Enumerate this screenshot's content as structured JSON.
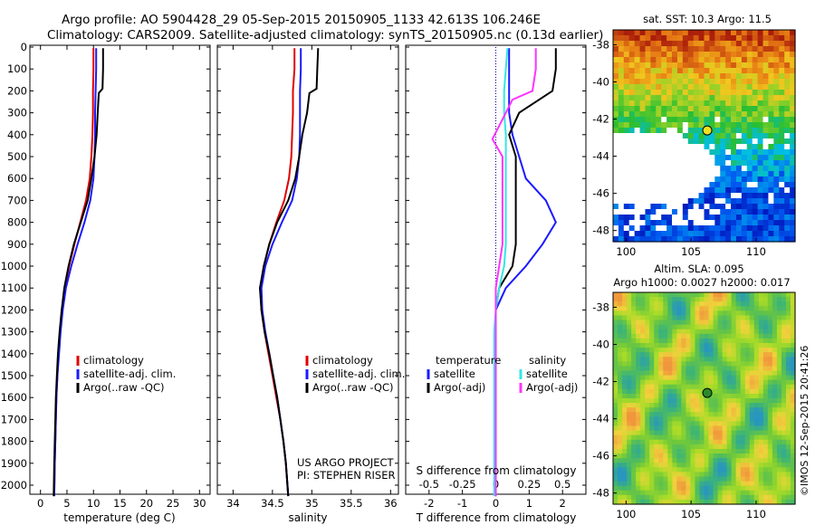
{
  "header": {
    "line1": "Argo profile: AO 5904428_29 05-Sep-2015 20150905_1133 42.613S 106.246E",
    "line2": "Climatology: CARS2009. Satellite-adjusted climatology: synTS_20150905.nc (0.13d earlier)"
  },
  "colors": {
    "climatology": "#e00000",
    "satellite": "#1a1aff",
    "argo": "#000000",
    "argo_adj_s": "#ff33ff",
    "satellite_s": "#33e6e6",
    "dotted_zero": "#0000aa"
  },
  "chart_data": [
    {
      "id": "temperature",
      "type": "line",
      "xlabel": "temperature (deg C)",
      "x_ticks": [
        "0",
        "5",
        "10",
        "15",
        "20",
        "25",
        "30"
      ],
      "xlim": [
        -2,
        32
      ],
      "y_ticks": [
        "0",
        "100",
        "200",
        "300",
        "400",
        "500",
        "600",
        "700",
        "800",
        "900",
        "1000",
        "1100",
        "1200",
        "1300",
        "1400",
        "1500",
        "1600",
        "1700",
        "1800",
        "1900",
        "2000"
      ],
      "ylim": [
        0,
        2060
      ],
      "y_reversed": true,
      "legend": [
        "climatology",
        "satellite-adj. clim.",
        "Argo(..raw -QC)"
      ],
      "series": [
        {
          "name": "climatology",
          "color": "#e00000",
          "points": [
            [
              10.0,
              5
            ],
            [
              10.0,
              100
            ],
            [
              9.9,
              200
            ],
            [
              9.9,
              300
            ],
            [
              9.8,
              400
            ],
            [
              9.6,
              500
            ],
            [
              9.3,
              600
            ],
            [
              8.6,
              700
            ],
            [
              7.5,
              800
            ],
            [
              6.4,
              900
            ],
            [
              5.4,
              1000
            ],
            [
              4.6,
              1100
            ],
            [
              4.1,
              1200
            ],
            [
              3.7,
              1300
            ],
            [
              3.4,
              1400
            ],
            [
              3.2,
              1500
            ],
            [
              3.0,
              1600
            ],
            [
              2.9,
              1700
            ],
            [
              2.8,
              1800
            ],
            [
              2.7,
              1900
            ],
            [
              2.6,
              2050
            ]
          ]
        },
        {
          "name": "satellite-adj. clim.",
          "color": "#1a1aff",
          "points": [
            [
              10.5,
              5
            ],
            [
              10.5,
              100
            ],
            [
              10.4,
              200
            ],
            [
              10.3,
              300
            ],
            [
              10.3,
              400
            ],
            [
              10.2,
              500
            ],
            [
              10.0,
              600
            ],
            [
              9.4,
              700
            ],
            [
              8.3,
              800
            ],
            [
              7.0,
              900
            ],
            [
              5.8,
              1000
            ],
            [
              4.8,
              1100
            ],
            [
              4.2,
              1200
            ],
            [
              3.8,
              1300
            ],
            [
              3.5,
              1400
            ],
            [
              3.2,
              1500
            ],
            [
              3.0,
              1600
            ],
            [
              2.9,
              1700
            ],
            [
              2.8,
              1800
            ],
            [
              2.7,
              1900
            ],
            [
              2.6,
              2050
            ]
          ]
        },
        {
          "name": "Argo(..raw -QC)",
          "color": "#000000",
          "points": [
            [
              11.8,
              5
            ],
            [
              11.8,
              100
            ],
            [
              11.7,
              190
            ],
            [
              11.0,
              210
            ],
            [
              10.8,
              300
            ],
            [
              10.6,
              400
            ],
            [
              10.2,
              500
            ],
            [
              9.6,
              600
            ],
            [
              8.9,
              700
            ],
            [
              7.6,
              800
            ],
            [
              6.3,
              900
            ],
            [
              5.3,
              1000
            ],
            [
              4.5,
              1100
            ],
            [
              4.0,
              1200
            ],
            [
              3.6,
              1300
            ],
            [
              3.3,
              1400
            ],
            [
              3.1,
              1500
            ],
            [
              2.9,
              1600
            ],
            [
              2.8,
              1700
            ],
            [
              2.7,
              1800
            ],
            [
              2.6,
              1900
            ],
            [
              2.5,
              2050
            ]
          ]
        }
      ]
    },
    {
      "id": "salinity",
      "type": "line",
      "xlabel": "salinity",
      "x_ticks": [
        "34",
        "34.5",
        "35",
        "35.5",
        "36"
      ],
      "xlim": [
        33.8,
        36.1
      ],
      "ylim": [
        0,
        2060
      ],
      "y_reversed": true,
      "legend": [
        "climatology",
        "satellite-adj. clim.",
        "Argo(..raw -QC)"
      ],
      "annotation_lines": [
        "US ARGO PROJECT",
        "PI: STEPHEN RISER"
      ],
      "series": [
        {
          "name": "climatology",
          "color": "#e00000",
          "points": [
            [
              34.78,
              5
            ],
            [
              34.78,
              100
            ],
            [
              34.76,
              200
            ],
            [
              34.76,
              300
            ],
            [
              34.75,
              400
            ],
            [
              34.74,
              500
            ],
            [
              34.71,
              600
            ],
            [
              34.65,
              700
            ],
            [
              34.55,
              800
            ],
            [
              34.46,
              900
            ],
            [
              34.39,
              1000
            ],
            [
              34.35,
              1100
            ],
            [
              34.36,
              1200
            ],
            [
              34.4,
              1300
            ],
            [
              34.45,
              1400
            ],
            [
              34.5,
              1500
            ],
            [
              34.55,
              1600
            ],
            [
              34.6,
              1700
            ],
            [
              34.64,
              1800
            ],
            [
              34.67,
              1900
            ],
            [
              34.7,
              2050
            ]
          ]
        },
        {
          "name": "satellite-adj. clim.",
          "color": "#1a1aff",
          "points": [
            [
              34.86,
              5
            ],
            [
              34.86,
              100
            ],
            [
              34.85,
              200
            ],
            [
              34.85,
              300
            ],
            [
              34.85,
              400
            ],
            [
              34.84,
              500
            ],
            [
              34.81,
              600
            ],
            [
              34.75,
              700
            ],
            [
              34.62,
              800
            ],
            [
              34.5,
              900
            ],
            [
              34.41,
              1000
            ],
            [
              34.36,
              1100
            ],
            [
              34.37,
              1200
            ],
            [
              34.41,
              1300
            ],
            [
              34.46,
              1400
            ],
            [
              34.51,
              1500
            ],
            [
              34.56,
              1600
            ],
            [
              34.6,
              1700
            ],
            [
              34.64,
              1800
            ],
            [
              34.67,
              1900
            ],
            [
              34.7,
              2050
            ]
          ]
        },
        {
          "name": "Argo(..raw -QC)",
          "color": "#000000",
          "points": [
            [
              35.08,
              5
            ],
            [
              35.07,
              100
            ],
            [
              35.06,
              190
            ],
            [
              34.97,
              210
            ],
            [
              34.94,
              300
            ],
            [
              34.88,
              400
            ],
            [
              34.84,
              500
            ],
            [
              34.79,
              600
            ],
            [
              34.7,
              700
            ],
            [
              34.56,
              800
            ],
            [
              34.46,
              900
            ],
            [
              34.39,
              1000
            ],
            [
              34.34,
              1100
            ],
            [
              34.36,
              1200
            ],
            [
              34.4,
              1300
            ],
            [
              34.46,
              1400
            ],
            [
              34.51,
              1500
            ],
            [
              34.56,
              1600
            ],
            [
              34.6,
              1700
            ],
            [
              34.64,
              1800
            ],
            [
              34.67,
              1900
            ],
            [
              34.7,
              2050
            ]
          ]
        }
      ]
    },
    {
      "id": "differences",
      "type": "line",
      "xlabel": "T difference from climatology",
      "x_ticks": [
        "-2",
        "-1",
        "0",
        "1",
        "2"
      ],
      "xlim": [
        -2.7,
        2.7
      ],
      "top_xlabel": "S difference from climatology",
      "top_x_ticks": [
        "-0.5",
        "-0.25",
        "0",
        "0.25",
        "0.5"
      ],
      "ylim": [
        0,
        2060
      ],
      "y_reversed": true,
      "legend": {
        "temperature_title": "temperature",
        "temperature": [
          "satellite",
          "Argo(-adj)"
        ],
        "salinity_title": "salinity",
        "salinity": [
          "satellite",
          "Argo(-adj)"
        ]
      },
      "series": [
        {
          "name": "T satellite",
          "color": "#1a1aff",
          "points": [
            [
              0.4,
              5
            ],
            [
              0.4,
              100
            ],
            [
              0.4,
              200
            ],
            [
              0.4,
              300
            ],
            [
              0.5,
              400
            ],
            [
              0.7,
              500
            ],
            [
              0.9,
              600
            ],
            [
              1.5,
              700
            ],
            [
              1.8,
              800
            ],
            [
              1.4,
              900
            ],
            [
              0.9,
              1000
            ],
            [
              0.3,
              1100
            ],
            [
              0.0,
              1200
            ],
            [
              0.0,
              1300
            ],
            [
              0.0,
              1500
            ],
            [
              0.0,
              1700
            ],
            [
              0.0,
              2050
            ]
          ]
        },
        {
          "name": "T Argo(-adj)",
          "color": "#000000",
          "points": [
            [
              1.8,
              5
            ],
            [
              1.8,
              100
            ],
            [
              1.7,
              200
            ],
            [
              0.7,
              300
            ],
            [
              0.4,
              400
            ],
            [
              0.6,
              500
            ],
            [
              0.6,
              600
            ],
            [
              0.6,
              700
            ],
            [
              0.6,
              800
            ],
            [
              0.6,
              900
            ],
            [
              0.5,
              1000
            ],
            [
              0.1,
              1100
            ],
            [
              0.0,
              1200
            ],
            [
              0.0,
              1400
            ],
            [
              0.0,
              1600
            ],
            [
              0.0,
              2050
            ]
          ]
        },
        {
          "name": "S satellite",
          "color": "#33e6e6",
          "points": [
            [
              0.35,
              5
            ],
            [
              0.3,
              100
            ],
            [
              0.25,
              200
            ],
            [
              0.25,
              300
            ],
            [
              0.3,
              400
            ],
            [
              0.3,
              500
            ],
            [
              0.3,
              600
            ],
            [
              0.3,
              700
            ],
            [
              0.3,
              800
            ],
            [
              0.3,
              900
            ],
            [
              0.25,
              1000
            ],
            [
              0.1,
              1100
            ],
            [
              0.0,
              1200
            ],
            [
              -0.05,
              1300
            ],
            [
              -0.05,
              1500
            ],
            [
              -0.05,
              1700
            ],
            [
              -0.05,
              2050
            ]
          ]
        },
        {
          "name": "S Argo(-adj)",
          "color": "#ff33ff",
          "points": [
            [
              1.2,
              5
            ],
            [
              1.2,
              100
            ],
            [
              1.1,
              200
            ],
            [
              0.5,
              240
            ],
            [
              0.3,
              300
            ],
            [
              -0.1,
              420
            ],
            [
              0.2,
              500
            ],
            [
              0.2,
              600
            ],
            [
              0.2,
              700
            ],
            [
              0.2,
              800
            ],
            [
              0.2,
              900
            ],
            [
              0.1,
              1000
            ],
            [
              0.0,
              1100
            ],
            [
              0.0,
              1200
            ],
            [
              0.0,
              1500
            ],
            [
              0.0,
              2050
            ]
          ]
        }
      ]
    },
    {
      "id": "sst_map",
      "type": "heatmap",
      "title": "sat. SST: 10.3  Argo: 11.5",
      "x_ticks": [
        "100",
        "105",
        "110"
      ],
      "y_ticks": [
        "-38",
        "-40",
        "-42",
        "-44",
        "-46",
        "-48"
      ],
      "xlim": [
        99,
        113
      ],
      "ylim": [
        -48.6,
        -37.2
      ],
      "marker": {
        "lon": 106.246,
        "lat": -42.613,
        "color": "#f0e020"
      }
    },
    {
      "id": "sla_map",
      "type": "heatmap",
      "title_line1": "Altim. SLA: 0.095",
      "title_line2": "Argo h1000: 0.0027 h2000: 0.017",
      "x_ticks": [
        "100",
        "105",
        "110"
      ],
      "y_ticks": [
        "-38",
        "-40",
        "-42",
        "-44",
        "-46",
        "-48"
      ],
      "xlim": [
        99,
        113
      ],
      "ylim": [
        -48.6,
        -37.2
      ],
      "marker": {
        "lon": 106.246,
        "lat": -42.613,
        "color": "#2a8a2a"
      },
      "side_label": "©IMOS 12-Sep-2015 20:41:26"
    }
  ]
}
